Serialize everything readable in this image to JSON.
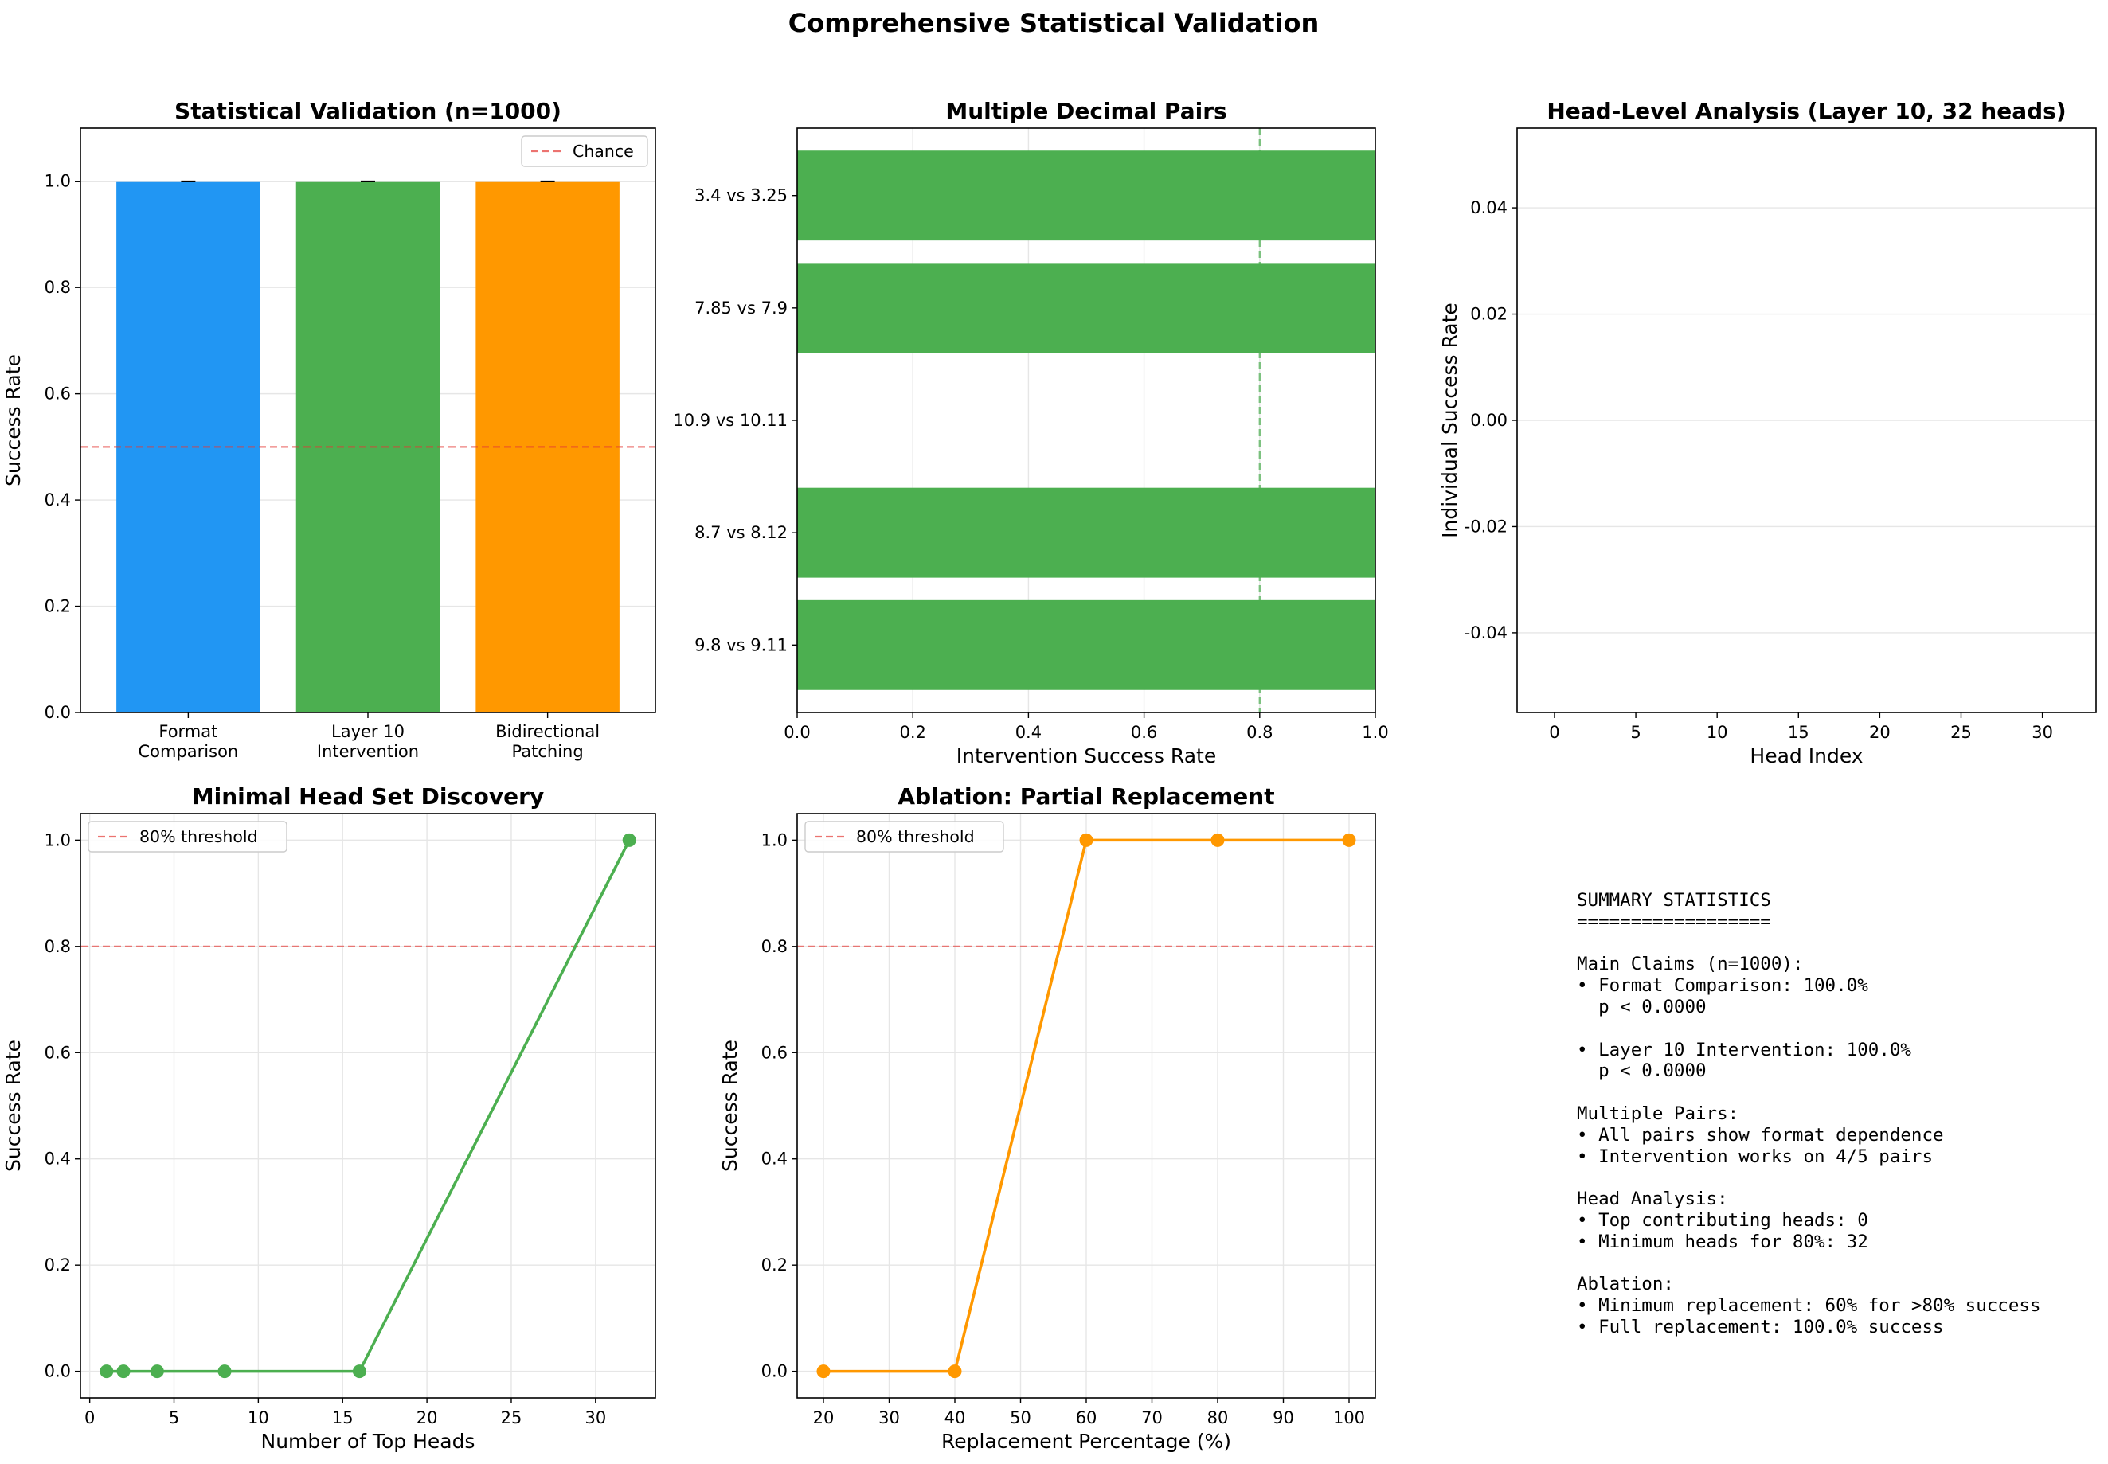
{
  "figure": {
    "title": "Comprehensive Statistical Validation"
  },
  "colors": {
    "blue": "#2196F3",
    "green": "#4CAF50",
    "orange": "#FF9800",
    "red": "#E53935",
    "axis": "#000000",
    "grid": "#e6e6e6"
  },
  "chart_data": [
    {
      "id": "p1",
      "type": "bar",
      "title": "Statistical Validation (n=1000)",
      "ylabel": "Success Rate",
      "categories": [
        "Format\nComparison",
        "Layer 10\nIntervention",
        "Bidirectional\nPatching"
      ],
      "values": [
        1.0,
        1.0,
        1.0
      ],
      "colors": [
        "#2196F3",
        "#4CAF50",
        "#FF9800"
      ],
      "error": [
        0.0,
        0.0,
        0.0
      ],
      "ylim": [
        0,
        1.1
      ],
      "yticks": [
        0.0,
        0.2,
        0.4,
        0.6,
        0.8,
        1.0
      ],
      "hline": {
        "y": 0.5,
        "label": "Chance"
      },
      "legend": "top-right",
      "grid": "y"
    },
    {
      "id": "p2",
      "type": "barh",
      "title": "Multiple Decimal Pairs",
      "xlabel": "Intervention Success Rate",
      "categories": [
        "9.8 vs 9.11",
        "8.7 vs 8.12",
        "10.9 vs 10.11",
        "7.85 vs 7.9",
        "3.4 vs 3.25"
      ],
      "values": [
        1.0,
        1.0,
        0.0,
        1.0,
        1.0
      ],
      "color": "#4CAF50",
      "xlim": [
        0,
        1.0
      ],
      "xticks": [
        0.0,
        0.2,
        0.4,
        0.6,
        0.8,
        1.0
      ],
      "vline": {
        "x": 0.8
      },
      "grid": "x"
    },
    {
      "id": "p3",
      "type": "bar",
      "title": "Head-Level Analysis (Layer 10, 32 heads)",
      "xlabel": "Head Index",
      "ylabel": "Individual Success Rate",
      "x": [],
      "values": [],
      "xlim": [
        -2.3,
        33.3
      ],
      "ylim": [
        -0.055,
        0.055
      ],
      "xticks": [
        0,
        5,
        10,
        15,
        20,
        25,
        30
      ],
      "yticks": [
        -0.04,
        -0.02,
        0.0,
        0.02,
        0.04
      ],
      "grid": "y"
    },
    {
      "id": "p4",
      "type": "line",
      "title": "Minimal Head Set Discovery",
      "xlabel": "Number of Top Heads",
      "ylabel": "Success Rate",
      "x": [
        1,
        2,
        4,
        8,
        16,
        32
      ],
      "y": [
        0.0,
        0.0,
        0.0,
        0.0,
        0.0,
        1.0
      ],
      "color": "#4CAF50",
      "xlim": [
        -0.55,
        33.55
      ],
      "ylim": [
        -0.05,
        1.05
      ],
      "xticks": [
        0,
        5,
        10,
        15,
        20,
        25,
        30
      ],
      "yticks": [
        0.0,
        0.2,
        0.4,
        0.6,
        0.8,
        1.0
      ],
      "hline": {
        "y": 0.8,
        "label": "80% threshold"
      },
      "legend": "top-left",
      "grid": "both"
    },
    {
      "id": "p5",
      "type": "line",
      "title": "Ablation: Partial Replacement",
      "xlabel": "Replacement Percentage (%)",
      "ylabel": "Success Rate",
      "x": [
        20,
        40,
        60,
        80,
        100
      ],
      "y": [
        0.0,
        0.0,
        1.0,
        1.0,
        1.0
      ],
      "color": "#FF9800",
      "xlim": [
        16,
        104
      ],
      "ylim": [
        -0.05,
        1.05
      ],
      "xticks": [
        20,
        30,
        40,
        50,
        60,
        70,
        80,
        90,
        100
      ],
      "yticks": [
        0.0,
        0.2,
        0.4,
        0.6,
        0.8,
        1.0
      ],
      "hline": {
        "y": 0.8,
        "label": "80% threshold"
      },
      "legend": "top-left",
      "grid": "both"
    }
  ],
  "summary": {
    "lines": [
      "SUMMARY STATISTICS",
      "==================",
      "",
      "Main Claims (n=1000):",
      "• Format Comparison: 100.0%",
      "  p < 0.0000",
      "",
      "• Layer 10 Intervention: 100.0%",
      "  p < 0.0000",
      "",
      "Multiple Pairs:",
      "• All pairs show format dependence",
      "• Intervention works on 4/5 pairs",
      "",
      "Head Analysis:",
      "• Top contributing heads: 0",
      "• Minimum heads for 80%: 32",
      "",
      "Ablation:",
      "• Minimum replacement: 60% for >80% success",
      "• Full replacement: 100.0% success"
    ]
  }
}
